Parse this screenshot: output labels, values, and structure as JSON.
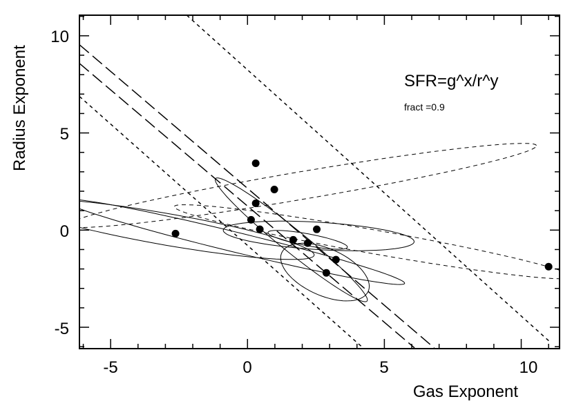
{
  "chart_data": {
    "type": "scatter",
    "title": "",
    "xlabel": "Gas Exponent",
    "ylabel": "Radius Exponent",
    "xlim": [
      -6.14,
      11.4
    ],
    "ylim": [
      -6.1,
      11.06
    ],
    "xticks": [
      -5,
      0,
      5,
      10
    ],
    "yticks": [
      -5,
      0,
      5,
      10
    ],
    "xtick_labels": [
      "-5",
      "0",
      "5",
      "10"
    ],
    "ytick_labels": [
      "-5",
      "0",
      "5",
      "10"
    ],
    "grid": false,
    "annotations": [
      "SFR=g^x/r^y",
      "fract =0.9"
    ],
    "points": [
      {
        "x": -2.63,
        "y": -0.18
      },
      {
        "x": 0.3,
        "y": 3.44
      },
      {
        "x": 0.98,
        "y": 2.09
      },
      {
        "x": 0.3,
        "y": 1.38
      },
      {
        "x": 0.13,
        "y": 0.53
      },
      {
        "x": 0.45,
        "y": 0.04
      },
      {
        "x": 1.67,
        "y": -0.5
      },
      {
        "x": 2.2,
        "y": -0.67
      },
      {
        "x": 2.53,
        "y": 0.04
      },
      {
        "x": 3.23,
        "y": -1.52
      },
      {
        "x": 2.88,
        "y": -2.2
      },
      {
        "x": 11.0,
        "y": -1.88
      }
    ],
    "lines": [
      {
        "style": "short-dash",
        "x": [
          -2.22,
          11.04
        ],
        "y": [
          11.06,
          -5.74
        ]
      },
      {
        "style": "long-dash",
        "x": [
          -6.14,
          6.82
        ],
        "y": [
          9.54,
          -6.06
        ]
      },
      {
        "style": "long-dash",
        "x": [
          -6.14,
          6.1
        ],
        "y": [
          8.58,
          -6.06
        ]
      },
      {
        "style": "short-dash",
        "x": [
          -6.14,
          4.22
        ],
        "y": [
          6.88,
          -6.06
        ]
      }
    ],
    "ellipses": [
      {
        "style": "solid",
        "cx": -3.0,
        "cy": 0.05,
        "a": 5.6,
        "b": 0.8,
        "angle_deg": -14
      },
      {
        "style": "solid",
        "cx": -0.5,
        "cy": -0.6,
        "a": 6.6,
        "b": 0.5,
        "angle_deg": -19
      },
      {
        "style": "solid",
        "cx": 2.6,
        "cy": -0.3,
        "a": 3.5,
        "b": 0.7,
        "angle_deg": -5
      },
      {
        "style": "solid",
        "cx": 1.6,
        "cy": -0.5,
        "a": 4.2,
        "b": 0.5,
        "angle_deg": -49
      },
      {
        "style": "solid",
        "cx": 2.83,
        "cy": -2.16,
        "a": 1.9,
        "b": 1.1,
        "angle_deg": -40
      },
      {
        "style": "solid",
        "cx": 2.2,
        "cy": -0.5,
        "a": 1.5,
        "b": 0.3,
        "angle_deg": -15
      },
      {
        "style": "dash",
        "cx": 2.0,
        "cy": 2.3,
        "a": 8.8,
        "b": 0.7,
        "angle_deg": 13.5
      },
      {
        "style": "dash",
        "cx": 4.6,
        "cy": -0.6,
        "a": 7.5,
        "b": 0.6,
        "angle_deg": -14
      }
    ]
  }
}
